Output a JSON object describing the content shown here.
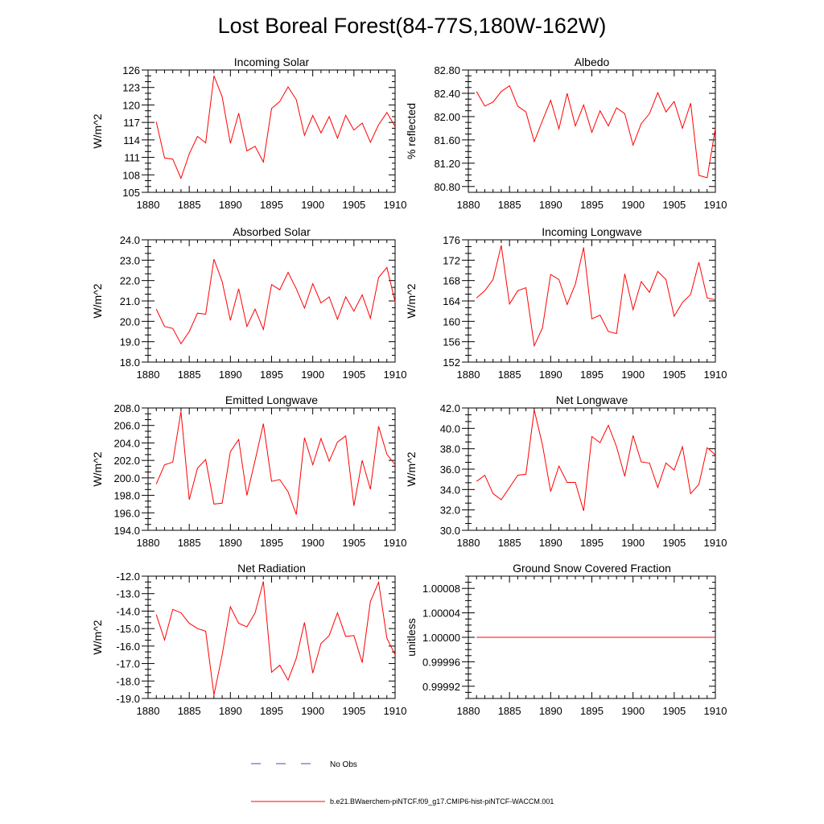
{
  "figure_title": "Lost Boreal Forest(84-77S,180W-162W)",
  "legend": {
    "obs_label": "No Obs",
    "model_label": "b.e21.BWaerchem-piNTCF.f09_g17.CMIP6-hist-piNTCF-WACCM.001",
    "obs_color": "#3c4fb8",
    "model_color": "#ff0000"
  },
  "chart_data": [
    {
      "type": "line",
      "title": "Incoming Solar",
      "ylabel": "W/m^2",
      "xlim": [
        1880,
        1910
      ],
      "ylim": [
        105,
        126
      ],
      "xticks": [
        1880,
        1885,
        1890,
        1895,
        1900,
        1905,
        1910
      ],
      "yticks": [
        105,
        108,
        111,
        114,
        117,
        120,
        123,
        126
      ],
      "ytick_labels": [
        "105",
        "108",
        "111",
        "114",
        "117",
        "120",
        "123",
        "126"
      ],
      "series": [
        {
          "color": "#ff0000",
          "x": [
            1881,
            1882,
            1883,
            1884,
            1885,
            1886,
            1887,
            1888,
            1889,
            1890,
            1891,
            1892,
            1893,
            1894,
            1895,
            1896,
            1897,
            1898,
            1899,
            1900,
            1901,
            1902,
            1903,
            1904,
            1905,
            1906,
            1907,
            1908,
            1909,
            1910
          ],
          "values": [
            117.1,
            110.9,
            110.7,
            107.4,
            111.6,
            114.6,
            113.5,
            125.0,
            121.4,
            113.4,
            118.6,
            112.1,
            112.9,
            110.2,
            119.4,
            120.6,
            123.1,
            120.9,
            114.8,
            118.2,
            115.2,
            118.0,
            114.3,
            118.2,
            115.7,
            116.9,
            113.6,
            116.6,
            118.7,
            116.3
          ]
        }
      ]
    },
    {
      "type": "line",
      "title": "Albedo",
      "ylabel": "% reflected",
      "xlim": [
        1880,
        1910
      ],
      "ylim": [
        80.7,
        82.8
      ],
      "xticks": [
        1880,
        1885,
        1890,
        1895,
        1900,
        1905,
        1910
      ],
      "yticks": [
        80.8,
        81.2,
        81.6,
        82.0,
        82.4,
        82.8
      ],
      "ytick_labels": [
        "80.80",
        "81.20",
        "81.60",
        "82.00",
        "82.40",
        "82.80"
      ],
      "series": [
        {
          "color": "#ff0000",
          "x": [
            1881,
            1882,
            1883,
            1884,
            1885,
            1886,
            1887,
            1888,
            1889,
            1890,
            1891,
            1892,
            1893,
            1894,
            1895,
            1896,
            1897,
            1898,
            1899,
            1900,
            1901,
            1902,
            1903,
            1904,
            1905,
            1906,
            1907,
            1908,
            1909,
            1910
          ],
          "values": [
            82.43,
            82.18,
            82.25,
            82.43,
            82.53,
            82.18,
            82.08,
            81.57,
            81.93,
            82.28,
            81.79,
            82.4,
            81.84,
            82.2,
            81.73,
            82.1,
            81.84,
            82.15,
            82.05,
            81.51,
            81.88,
            82.05,
            82.41,
            82.08,
            82.26,
            81.8,
            82.23,
            80.99,
            80.95,
            81.8
          ]
        }
      ]
    },
    {
      "type": "line",
      "title": "Absorbed Solar",
      "ylabel": "W/m^2",
      "xlim": [
        1880,
        1910
      ],
      "ylim": [
        18.0,
        24.0
      ],
      "xticks": [
        1880,
        1885,
        1890,
        1895,
        1900,
        1905,
        1910
      ],
      "yticks": [
        18,
        19,
        20,
        21,
        22,
        23,
        24
      ],
      "ytick_labels": [
        "18.0",
        "19.0",
        "20.0",
        "21.0",
        "22.0",
        "23.0",
        "24.0"
      ],
      "series": [
        {
          "color": "#ff0000",
          "x": [
            1881,
            1882,
            1883,
            1884,
            1885,
            1886,
            1887,
            1888,
            1889,
            1890,
            1891,
            1892,
            1893,
            1894,
            1895,
            1896,
            1897,
            1898,
            1899,
            1900,
            1901,
            1902,
            1903,
            1904,
            1905,
            1906,
            1907,
            1908,
            1909,
            1910
          ],
          "values": [
            20.6,
            19.75,
            19.65,
            18.9,
            19.5,
            20.4,
            20.35,
            23.05,
            21.95,
            20.05,
            21.6,
            19.75,
            20.6,
            19.6,
            21.8,
            21.55,
            22.4,
            21.6,
            20.65,
            21.85,
            20.9,
            21.2,
            20.1,
            21.2,
            20.5,
            21.3,
            20.15,
            22.15,
            22.65,
            20.95
          ]
        }
      ]
    },
    {
      "type": "line",
      "title": "Incoming Longwave",
      "ylabel": "W/m^2",
      "xlim": [
        1880,
        1910
      ],
      "ylim": [
        152,
        176
      ],
      "xticks": [
        1880,
        1885,
        1890,
        1895,
        1900,
        1905,
        1910
      ],
      "yticks": [
        152,
        156,
        160,
        164,
        168,
        172,
        176
      ],
      "ytick_labels": [
        "152",
        "156",
        "160",
        "164",
        "168",
        "172",
        "176"
      ],
      "series": [
        {
          "color": "#ff0000",
          "x": [
            1881,
            1882,
            1883,
            1884,
            1885,
            1886,
            1887,
            1888,
            1889,
            1890,
            1891,
            1892,
            1893,
            1894,
            1895,
            1896,
            1897,
            1898,
            1899,
            1900,
            1901,
            1902,
            1903,
            1904,
            1905,
            1906,
            1907,
            1908,
            1909,
            1910
          ],
          "values": [
            164.6,
            166.0,
            168.2,
            174.9,
            163.4,
            166.0,
            166.6,
            155.2,
            158.7,
            169.2,
            168.2,
            163.3,
            167.3,
            174.5,
            160.5,
            161.2,
            158.0,
            157.6,
            169.3,
            162.3,
            167.8,
            165.7,
            169.8,
            168.2,
            161.0,
            163.7,
            165.3,
            171.6,
            164.6,
            164.2
          ]
        }
      ]
    },
    {
      "type": "line",
      "title": "Emitted Longwave",
      "ylabel": "W/m^2",
      "xlim": [
        1880,
        1910
      ],
      "ylim": [
        194.0,
        208.0
      ],
      "xticks": [
        1880,
        1885,
        1890,
        1895,
        1900,
        1905,
        1910
      ],
      "yticks": [
        194,
        196,
        198,
        200,
        202,
        204,
        206,
        208
      ],
      "ytick_labels": [
        "194.0",
        "196.0",
        "198.0",
        "200.0",
        "202.0",
        "204.0",
        "206.0",
        "208.0"
      ],
      "series": [
        {
          "color": "#ff0000",
          "x": [
            1881,
            1882,
            1883,
            1884,
            1885,
            1886,
            1887,
            1888,
            1889,
            1890,
            1891,
            1892,
            1893,
            1894,
            1895,
            1896,
            1897,
            1898,
            1899,
            1900,
            1901,
            1902,
            1903,
            1904,
            1905,
            1906,
            1907,
            1908,
            1909,
            1910
          ],
          "values": [
            199.3,
            201.5,
            201.8,
            207.6,
            197.5,
            201.1,
            202.1,
            197.0,
            197.1,
            203.0,
            204.4,
            198.0,
            202.0,
            206.2,
            199.6,
            199.8,
            198.4,
            195.8,
            204.6,
            201.5,
            204.5,
            201.9,
            204.1,
            204.8,
            196.8,
            202.0,
            198.7,
            205.9,
            202.7,
            201.5
          ]
        }
      ]
    },
    {
      "type": "line",
      "title": "Net Longwave",
      "ylabel": "W/m^2",
      "xlim": [
        1880,
        1910
      ],
      "ylim": [
        30.0,
        42.0
      ],
      "xticks": [
        1880,
        1885,
        1890,
        1895,
        1900,
        1905,
        1910
      ],
      "yticks": [
        30,
        32,
        34,
        36,
        38,
        40,
        42
      ],
      "ytick_labels": [
        "30.0",
        "32.0",
        "34.0",
        "36.0",
        "38.0",
        "40.0",
        "42.0"
      ],
      "series": [
        {
          "color": "#ff0000",
          "x": [
            1881,
            1882,
            1883,
            1884,
            1885,
            1886,
            1887,
            1888,
            1889,
            1890,
            1891,
            1892,
            1893,
            1894,
            1895,
            1896,
            1897,
            1898,
            1899,
            1900,
            1901,
            1902,
            1903,
            1904,
            1905,
            1906,
            1907,
            1908,
            1909,
            1910
          ],
          "values": [
            34.8,
            35.4,
            33.6,
            33.0,
            34.2,
            35.4,
            35.5,
            41.8,
            38.4,
            33.8,
            36.3,
            34.7,
            34.7,
            31.9,
            39.2,
            38.6,
            40.3,
            38.2,
            35.3,
            39.3,
            36.7,
            36.6,
            34.2,
            36.6,
            35.9,
            38.2,
            33.6,
            34.5,
            38.1,
            37.4
          ]
        }
      ]
    },
    {
      "type": "line",
      "title": "Net Radiation",
      "ylabel": "W/m^2",
      "xlim": [
        1880,
        1910
      ],
      "ylim": [
        -19.0,
        -12.0
      ],
      "xticks": [
        1880,
        1885,
        1890,
        1895,
        1900,
        1905,
        1910
      ],
      "yticks": [
        -19,
        -18,
        -17,
        -16,
        -15,
        -14,
        -13,
        -12
      ],
      "ytick_labels": [
        "-19.0",
        "-18.0",
        "-17.0",
        "-16.0",
        "-15.0",
        "-14.0",
        "-13.0",
        "-12.0"
      ],
      "series": [
        {
          "color": "#ff0000",
          "x": [
            1881,
            1882,
            1883,
            1884,
            1885,
            1886,
            1887,
            1888,
            1889,
            1890,
            1891,
            1892,
            1893,
            1894,
            1895,
            1896,
            1897,
            1898,
            1899,
            1900,
            1901,
            1902,
            1903,
            1904,
            1905,
            1906,
            1907,
            1908,
            1909,
            1910
          ],
          "values": [
            -14.2,
            -15.65,
            -13.9,
            -14.1,
            -14.7,
            -15.0,
            -15.15,
            -18.8,
            -16.5,
            -13.75,
            -14.7,
            -14.9,
            -14.1,
            -12.3,
            -17.5,
            -17.1,
            -17.95,
            -16.7,
            -14.65,
            -17.55,
            -15.85,
            -15.4,
            -14.1,
            -15.45,
            -15.4,
            -16.95,
            -13.45,
            -12.35,
            -15.55,
            -16.5
          ]
        }
      ]
    },
    {
      "type": "line",
      "title": "Ground Snow Covered Fraction",
      "ylabel": "unitless",
      "xlim": [
        1880,
        1910
      ],
      "ylim": [
        0.9999,
        1.0001
      ],
      "xticks": [
        1880,
        1885,
        1890,
        1895,
        1900,
        1905,
        1910
      ],
      "yticks": [
        0.99992,
        0.99996,
        1.0,
        1.00004,
        1.00008
      ],
      "ytick_labels": [
        "0.99992",
        "0.99996",
        "1.00000",
        "1.00004",
        "1.00008"
      ],
      "series": [
        {
          "color": "#ff0000",
          "x": [
            1881,
            1910
          ],
          "values": [
            1.0,
            1.0
          ]
        }
      ]
    }
  ]
}
